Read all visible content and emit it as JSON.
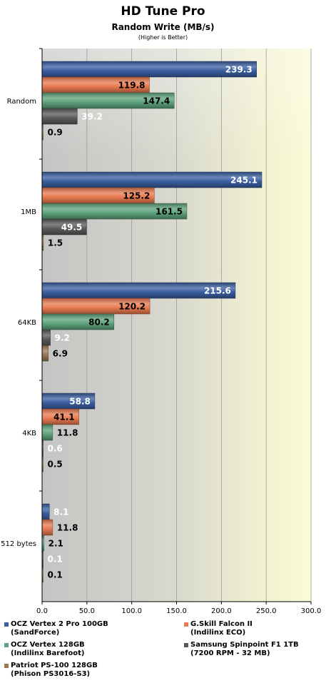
{
  "chart_data": {
    "type": "bar",
    "orientation": "horizontal",
    "title": "HD Tune Pro",
    "subtitle": "Random Write (MB/s)",
    "note": "(Higher is Better)",
    "categories": [
      "Random",
      "1MB",
      "64KB",
      "4KB",
      "512 bytes"
    ],
    "xlim": [
      0,
      300
    ],
    "xticks": [
      "0.0",
      "50.0",
      "100.0",
      "150.0",
      "200.0",
      "250.0",
      "300.0"
    ],
    "grid": true,
    "legend_position": "bottom",
    "series": [
      {
        "name": "OCZ Vertex 2 Pro 100GB",
        "name_line2": "(SandForce)",
        "color": "#3a5ea0",
        "values": [
          239.3,
          245.1,
          215.6,
          58.8,
          8.1
        ],
        "labels": [
          "239.3",
          "245.1",
          "215.6",
          "58.8",
          "8.1"
        ]
      },
      {
        "name": "G.Skill Falcon II",
        "name_line2": "(Indilinx ECO)",
        "color": "#e87a50",
        "values": [
          119.8,
          125.2,
          120.2,
          41.1,
          11.8
        ],
        "labels": [
          "119.8",
          "125.2",
          "120.2",
          "41.1",
          "11.8"
        ]
      },
      {
        "name": "OCZ Vertex 128GB",
        "name_line2": "(Indilinx Barefoot)",
        "color": "#5ea37c",
        "values": [
          147.4,
          161.5,
          80.2,
          11.8,
          2.1
        ],
        "labels": [
          "147.4",
          "161.5",
          "80.2",
          "11.8",
          "2.1"
        ]
      },
      {
        "name": "Samsung Spinpoint F1 1TB",
        "name_line2": "(7200 RPM - 32 MB)",
        "color": "#5a5a5a",
        "values": [
          39.2,
          49.5,
          9.2,
          0.6,
          0.1
        ],
        "labels": [
          "39.2",
          "49.5",
          "9.2",
          "0.6",
          "0.1"
        ]
      },
      {
        "name": "Patriot  PS-100 128GB",
        "name_line2": "(Phison PS3016-S3)",
        "color": "#9a7a55",
        "values": [
          0.9,
          1.5,
          6.9,
          0.5,
          0.1
        ],
        "labels": [
          "0.9",
          "1.5",
          "6.9",
          "0.5",
          "0.1"
        ]
      }
    ]
  }
}
